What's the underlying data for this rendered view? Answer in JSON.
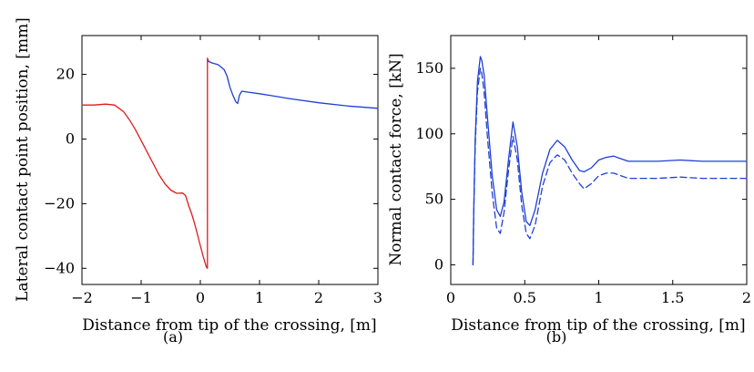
{
  "chart_data": [
    {
      "type": "line",
      "caption": "(a)",
      "xlabel": "Distance from tip of the crossing, [m]",
      "ylabel": "Lateral contact point position, [mm]",
      "xlim": [
        -2,
        3
      ],
      "ylim": [
        -45,
        32
      ],
      "xticks": [
        "−2",
        "−1",
        "0",
        "1",
        "2",
        "3"
      ],
      "xtick_values": [
        -2,
        -1,
        0,
        1,
        2,
        3
      ],
      "yticks": [
        "−40",
        "−20",
        "0",
        "20"
      ],
      "ytick_values": [
        -40,
        -20,
        0,
        20
      ],
      "grid": false,
      "series": [
        {
          "color": "#dd1c1c",
          "style": "solid",
          "x": [
            -2.0,
            -1.8,
            -1.6,
            -1.45,
            -1.3,
            -1.2,
            -1.1,
            -1.0,
            -0.9,
            -0.8,
            -0.7,
            -0.6,
            -0.5,
            -0.4,
            -0.3,
            -0.25,
            -0.2,
            -0.15,
            -0.1,
            -0.05,
            0.0,
            0.05,
            0.1,
            0.12,
            0.12,
            0.14
          ],
          "y": [
            10.5,
            10.5,
            10.8,
            10.5,
            8.5,
            6.0,
            3.0,
            -0.5,
            -4.0,
            -7.5,
            -11.0,
            -13.8,
            -15.8,
            -16.8,
            -16.7,
            -17.5,
            -20.5,
            -23.0,
            -26.0,
            -29.5,
            -33.0,
            -36.5,
            -39.5,
            -40.0,
            25.0,
            24.0
          ]
        },
        {
          "color": "#1f3fd6",
          "style": "solid",
          "x": [
            0.14,
            0.2,
            0.3,
            0.4,
            0.45,
            0.5,
            0.55,
            0.6,
            0.63,
            0.66,
            0.7,
            0.8,
            1.0,
            1.2,
            1.5,
            2.0,
            2.5,
            3.0
          ],
          "y": [
            24.0,
            23.5,
            23.0,
            21.5,
            19.5,
            16.0,
            13.5,
            11.5,
            11.0,
            13.5,
            14.8,
            14.5,
            14.0,
            13.4,
            12.5,
            11.2,
            10.2,
            9.5
          ]
        }
      ]
    },
    {
      "type": "line",
      "caption": "(b)",
      "xlabel": "Distance from tip of the crossing, [m]",
      "ylabel": "Normal contact force, [kN]",
      "xlim": [
        0,
        2
      ],
      "ylim": [
        -15,
        175
      ],
      "xticks": [
        "0",
        "0.5",
        "1",
        "1.5",
        "2"
      ],
      "xtick_values": [
        0,
        0.5,
        1,
        1.5,
        2
      ],
      "yticks": [
        "0",
        "50",
        "100",
        "150"
      ],
      "ytick_values": [
        0,
        50,
        100,
        150
      ],
      "grid": false,
      "series": [
        {
          "color": "#1f3fd6",
          "style": "solid",
          "x": [
            0.15,
            0.155,
            0.165,
            0.18,
            0.2,
            0.21,
            0.225,
            0.25,
            0.28,
            0.31,
            0.335,
            0.36,
            0.39,
            0.42,
            0.45,
            0.48,
            0.51,
            0.535,
            0.57,
            0.62,
            0.67,
            0.72,
            0.77,
            0.82,
            0.87,
            0.9,
            0.95,
            1.0,
            1.05,
            1.1,
            1.15,
            1.2,
            1.3,
            1.4,
            1.55,
            1.7,
            1.85,
            2.0
          ],
          "y": [
            0,
            40,
            95,
            140,
            159,
            156,
            145,
            110,
            68,
            42,
            37,
            48,
            80,
            109,
            90,
            55,
            33,
            30,
            42,
            70,
            88,
            95,
            90,
            80,
            72,
            71,
            74,
            80,
            82,
            83,
            81,
            79,
            79,
            79,
            80,
            79,
            79,
            79
          ]
        },
        {
          "color": "#1f3fd6",
          "style": "dashed",
          "x": [
            0.15,
            0.155,
            0.165,
            0.18,
            0.2,
            0.21,
            0.225,
            0.25,
            0.28,
            0.31,
            0.335,
            0.36,
            0.39,
            0.42,
            0.45,
            0.48,
            0.51,
            0.535,
            0.57,
            0.62,
            0.67,
            0.72,
            0.77,
            0.82,
            0.87,
            0.9,
            0.95,
            1.0,
            1.05,
            1.1,
            1.15,
            1.2,
            1.3,
            1.4,
            1.55,
            1.7,
            1.85,
            2.0
          ],
          "y": [
            0,
            38,
            90,
            132,
            150,
            146,
            132,
            95,
            55,
            28,
            24,
            40,
            72,
            98,
            80,
            45,
            24,
            20,
            30,
            60,
            78,
            84,
            80,
            70,
            62,
            58,
            62,
            68,
            70,
            70,
            68,
            66,
            66,
            66,
            67,
            66,
            66,
            66
          ]
        }
      ]
    }
  ]
}
